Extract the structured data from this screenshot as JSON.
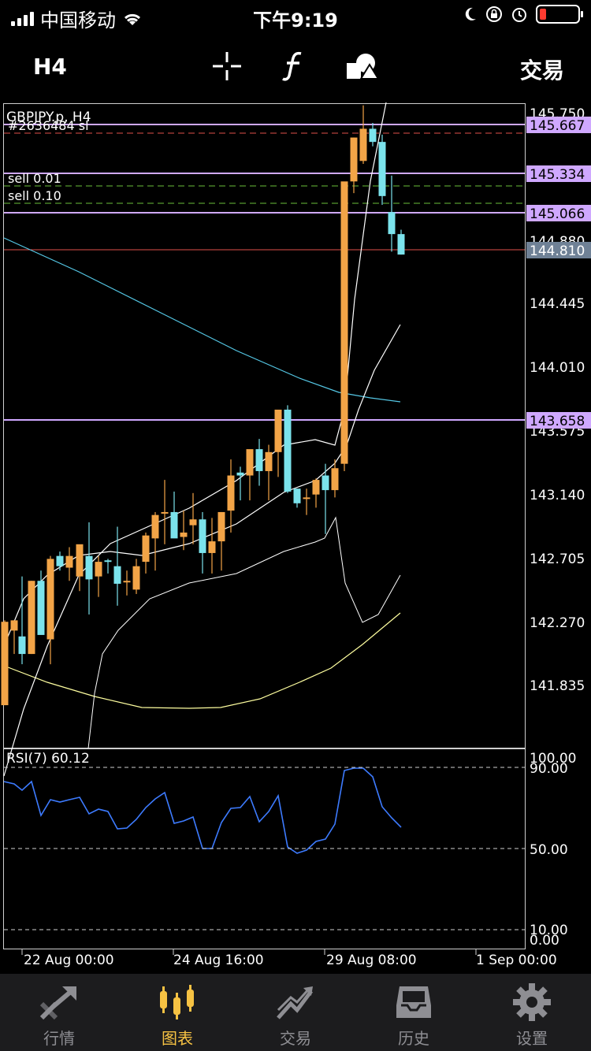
{
  "status_bar": {
    "carrier": "中国移动",
    "time": "下午9:19"
  },
  "toolbar": {
    "timeframe": "H4",
    "trade_label": "交易",
    "icons": [
      "crosshair-icon",
      "function-icon",
      "objects-icon"
    ]
  },
  "chart": {
    "symbol_label": "GBPJPY.p, H4",
    "order_sl_label": "#2636484 sl",
    "order1_label": "sell 0.01",
    "order2_label": "sell 0.10",
    "price_ticks": [
      "145.750",
      "144.880",
      "144.445",
      "144.010",
      "143.575",
      "143.140",
      "142.705",
      "142.270",
      "141.835"
    ],
    "level_labels": {
      "l1": "145.667",
      "l2": "145.334",
      "l3": "145.066",
      "current": "144.810",
      "l4": "143.658"
    },
    "rsi_label": "RSI(7) 60.12",
    "rsi_ticks": [
      "100.00",
      "90.00",
      "50.00",
      "10.00",
      "0.00"
    ],
    "time_labels": [
      "22 Aug 00:00",
      "24 Aug 16:00",
      "29 Aug 08:00",
      "1 Sep 00:00"
    ],
    "colors": {
      "bull": "#f2a447",
      "bear": "#7be3ec",
      "level_line": "#cfa8ff",
      "current_price_bg": "#6f8196",
      "ma": "#ffffa0",
      "slow_ma": "#55c8e6",
      "rsi": "#3d7bff"
    }
  },
  "tabbar": {
    "tabs": [
      {
        "label": "行情",
        "icon": "quotes-icon"
      },
      {
        "label": "图表",
        "icon": "chart-icon"
      },
      {
        "label": "交易",
        "icon": "trade-icon"
      },
      {
        "label": "历史",
        "icon": "history-icon"
      },
      {
        "label": "设置",
        "icon": "settings-icon"
      }
    ],
    "active": "图表"
  }
}
